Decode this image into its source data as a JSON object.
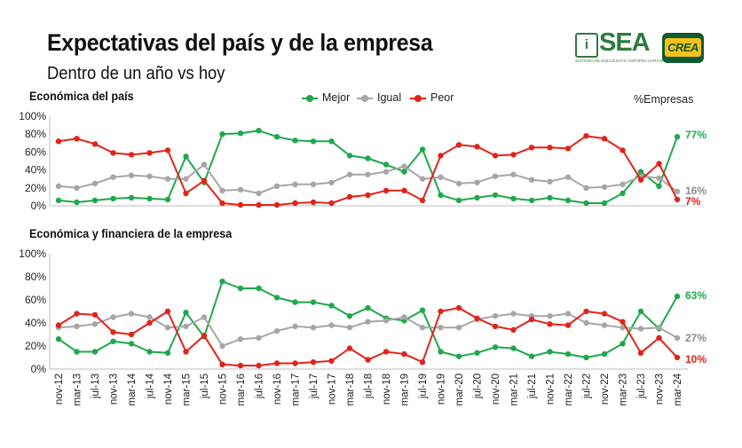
{
  "header": {
    "title": "Expectativas del país y de la empresa",
    "subtitle": "Dentro de un año vs hoy"
  },
  "logos": {
    "sea": {
      "mark": "i",
      "word": "SEA",
      "tagline": "SISTEMA DE ENCUESTAS AGROPECUARIAS"
    },
    "crea": {
      "word": "CREA"
    }
  },
  "unit_label": "%Empresas",
  "legend": [
    {
      "name": "Mejor",
      "color": "#1ea84b"
    },
    {
      "name": "Igual",
      "color": "#a6a6a6"
    },
    {
      "name": "Peor",
      "color": "#e2231a"
    }
  ],
  "chart_data": [
    {
      "type": "line",
      "title": "Económica del país",
      "ylim": [
        0,
        100
      ],
      "yticks": [
        "0%",
        "20%",
        "40%",
        "60%",
        "80%",
        "100%"
      ],
      "grid": false,
      "x": [
        "nov-12",
        "mar-13",
        "jul-13",
        "nov-13",
        "mar-14",
        "jul-14",
        "nov-14",
        "mar-15",
        "jul-15",
        "nov-15",
        "mar-16",
        "jul-16",
        "nov-16",
        "mar-17",
        "jul-17",
        "nov-17",
        "mar-18",
        "jul-18",
        "nov-18",
        "mar-19",
        "jul-19",
        "nov-19",
        "mar-20",
        "jul-20",
        "nov-20",
        "mar-21",
        "jul-21",
        "nov-21",
        "mar-22",
        "jul-22",
        "nov-22",
        "mar-23",
        "jul-23",
        "nov-23",
        "mar-24"
      ],
      "series": [
        {
          "name": "Mejor",
          "color": "#1ea84b",
          "end_label": "77%",
          "values": [
            6,
            4,
            6,
            8,
            9,
            8,
            7,
            55,
            26,
            80,
            81,
            84,
            77,
            73,
            72,
            72,
            56,
            53,
            46,
            38,
            63,
            12,
            6,
            9,
            12,
            8,
            6,
            9,
            6,
            3,
            3,
            14,
            38,
            22,
            77
          ]
        },
        {
          "name": "Igual",
          "color": "#a6a6a6",
          "end_label": "16%",
          "values": [
            22,
            20,
            25,
            32,
            34,
            33,
            30,
            30,
            46,
            17,
            18,
            14,
            22,
            24,
            24,
            26,
            35,
            35,
            38,
            44,
            30,
            32,
            25,
            26,
            33,
            35,
            29,
            27,
            32,
            20,
            21,
            24,
            33,
            31,
            16
          ]
        },
        {
          "name": "Peor",
          "color": "#e2231a",
          "end_label": "7%",
          "values": [
            72,
            75,
            69,
            59,
            57,
            59,
            62,
            14,
            28,
            3,
            1,
            1,
            1,
            3,
            4,
            3,
            10,
            12,
            17,
            17,
            6,
            56,
            68,
            66,
            56,
            57,
            65,
            65,
            64,
            78,
            75,
            62,
            29,
            47,
            7
          ]
        }
      ]
    },
    {
      "type": "line",
      "title": "Económica y financiera de la empresa",
      "ylim": [
        0,
        100
      ],
      "yticks": [
        "0%",
        "20%",
        "40%",
        "60%",
        "80%",
        "100%"
      ],
      "grid": false,
      "x": [
        "nov-12",
        "mar-13",
        "jul-13",
        "nov-13",
        "mar-14",
        "jul-14",
        "nov-14",
        "mar-15",
        "jul-15",
        "nov-15",
        "mar-16",
        "jul-16",
        "nov-16",
        "mar-17",
        "jul-17",
        "nov-17",
        "mar-18",
        "jul-18",
        "nov-18",
        "mar-19",
        "jul-19",
        "nov-19",
        "mar-20",
        "jul-20",
        "nov-20",
        "mar-21",
        "jul-21",
        "nov-21",
        "mar-22",
        "jul-22",
        "nov-22",
        "mar-23",
        "jul-23",
        "nov-23",
        "mar-24"
      ],
      "series": [
        {
          "name": "Mejor",
          "color": "#1ea84b",
          "end_label": "63%",
          "values": [
            26,
            15,
            15,
            24,
            22,
            15,
            14,
            49,
            28,
            76,
            70,
            70,
            62,
            58,
            58,
            55,
            46,
            53,
            44,
            42,
            51,
            15,
            11,
            14,
            19,
            18,
            11,
            15,
            13,
            10,
            13,
            22,
            50,
            35,
            63
          ]
        },
        {
          "name": "Igual",
          "color": "#a6a6a6",
          "end_label": "27%",
          "values": [
            36,
            37,
            39,
            45,
            48,
            45,
            36,
            37,
            45,
            20,
            26,
            27,
            33,
            37,
            36,
            38,
            36,
            41,
            42,
            45,
            36,
            36,
            36,
            43,
            46,
            48,
            46,
            46,
            48,
            40,
            38,
            36,
            35,
            36,
            27
          ]
        },
        {
          "name": "Peor",
          "color": "#e2231a",
          "end_label": "10%",
          "values": [
            38,
            48,
            47,
            32,
            30,
            40,
            50,
            15,
            29,
            4,
            3,
            3,
            5,
            5,
            6,
            7,
            18,
            8,
            15,
            13,
            6,
            50,
            53,
            44,
            37,
            34,
            43,
            39,
            38,
            50,
            48,
            41,
            14,
            27,
            10
          ]
        }
      ]
    }
  ]
}
